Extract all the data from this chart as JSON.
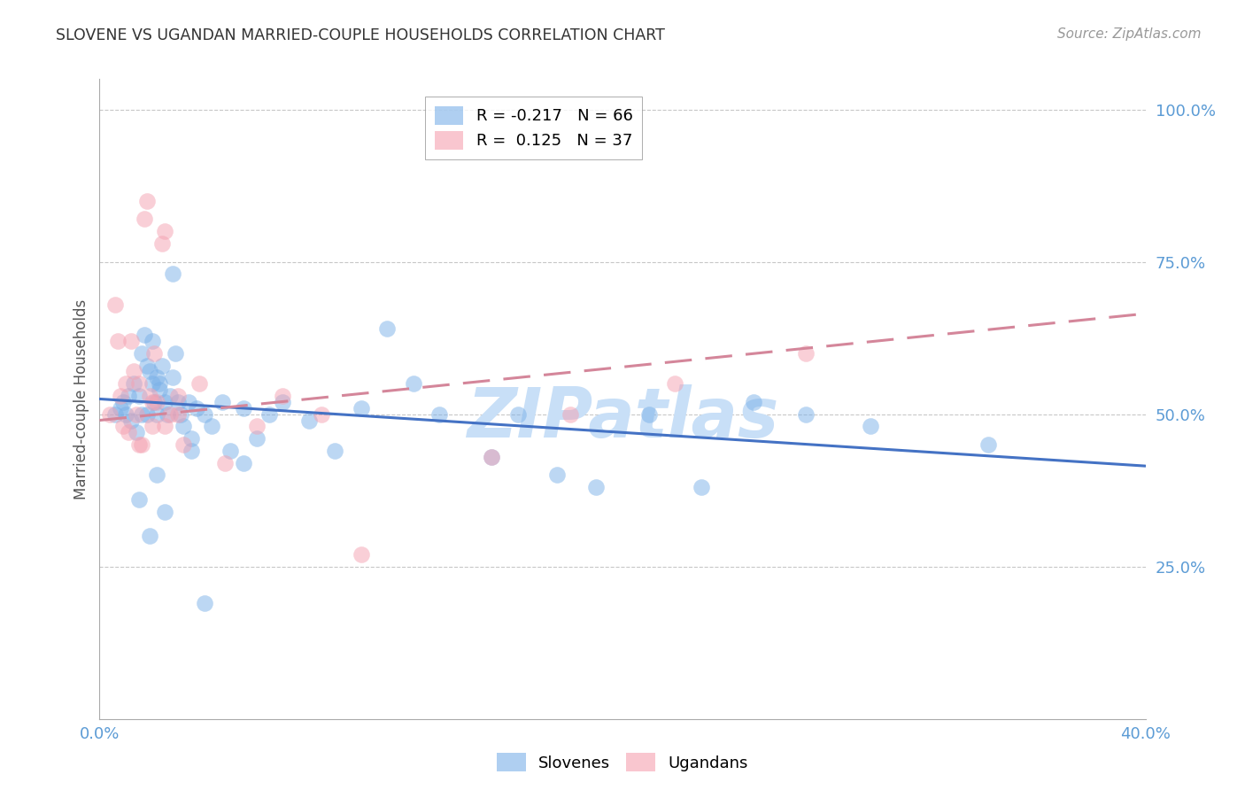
{
  "title": "SLOVENE VS UGANDAN MARRIED-COUPLE HOUSEHOLDS CORRELATION CHART",
  "source": "Source: ZipAtlas.com",
  "ylabel": "Married-couple Households",
  "xlim": [
    0.0,
    0.4
  ],
  "ylim": [
    0.0,
    1.05
  ],
  "slovene_color": "#7ab0e8",
  "ugandan_color": "#f5a0b0",
  "slovene_line_color": "#4472c4",
  "ugandan_line_color": "#d4869a",
  "background_color": "#ffffff",
  "grid_color": "#c8c8c8",
  "title_color": "#333333",
  "tick_color": "#5b9bd5",
  "watermark": "ZIPatlas",
  "watermark_color": "#c8dff7",
  "slovene_line_x0": 0.0,
  "slovene_line_y0": 0.525,
  "slovene_line_x1": 0.4,
  "slovene_line_y1": 0.415,
  "ugandan_line_x0": 0.0,
  "ugandan_line_y0": 0.49,
  "ugandan_line_x1": 0.4,
  "ugandan_line_y1": 0.665,
  "slovene_x": [
    0.006,
    0.008,
    0.009,
    0.01,
    0.011,
    0.012,
    0.013,
    0.014,
    0.015,
    0.016,
    0.016,
    0.017,
    0.018,
    0.018,
    0.019,
    0.02,
    0.02,
    0.021,
    0.022,
    0.022,
    0.023,
    0.023,
    0.024,
    0.025,
    0.026,
    0.027,
    0.028,
    0.029,
    0.03,
    0.031,
    0.032,
    0.034,
    0.035,
    0.037,
    0.04,
    0.043,
    0.047,
    0.05,
    0.055,
    0.06,
    0.065,
    0.07,
    0.08,
    0.09,
    0.1,
    0.11,
    0.12,
    0.13,
    0.15,
    0.16,
    0.175,
    0.19,
    0.21,
    0.23,
    0.25,
    0.27,
    0.295,
    0.34,
    0.015,
    0.019,
    0.022,
    0.025,
    0.028,
    0.035,
    0.04,
    0.055
  ],
  "slovene_y": [
    0.5,
    0.51,
    0.52,
    0.5,
    0.53,
    0.49,
    0.55,
    0.47,
    0.53,
    0.5,
    0.6,
    0.63,
    0.58,
    0.5,
    0.57,
    0.62,
    0.55,
    0.52,
    0.56,
    0.5,
    0.55,
    0.54,
    0.58,
    0.52,
    0.5,
    0.53,
    0.56,
    0.6,
    0.52,
    0.5,
    0.48,
    0.52,
    0.44,
    0.51,
    0.5,
    0.48,
    0.52,
    0.44,
    0.51,
    0.46,
    0.5,
    0.52,
    0.49,
    0.44,
    0.51,
    0.64,
    0.55,
    0.5,
    0.43,
    0.5,
    0.4,
    0.38,
    0.5,
    0.38,
    0.52,
    0.5,
    0.48,
    0.45,
    0.36,
    0.3,
    0.4,
    0.34,
    0.73,
    0.46,
    0.19,
    0.42
  ],
  "ugandan_x": [
    0.004,
    0.006,
    0.007,
    0.008,
    0.009,
    0.01,
    0.011,
    0.012,
    0.013,
    0.014,
    0.015,
    0.016,
    0.017,
    0.018,
    0.019,
    0.02,
    0.021,
    0.022,
    0.024,
    0.025,
    0.027,
    0.03,
    0.032,
    0.038,
    0.048,
    0.06,
    0.07,
    0.085,
    0.1,
    0.15,
    0.18,
    0.22,
    0.27,
    0.015,
    0.02,
    0.025,
    0.03
  ],
  "ugandan_y": [
    0.5,
    0.68,
    0.62,
    0.53,
    0.48,
    0.55,
    0.47,
    0.62,
    0.57,
    0.5,
    0.55,
    0.45,
    0.82,
    0.85,
    0.53,
    0.48,
    0.6,
    0.52,
    0.78,
    0.8,
    0.5,
    0.5,
    0.45,
    0.55,
    0.42,
    0.48,
    0.53,
    0.5,
    0.27,
    0.43,
    0.5,
    0.55,
    0.6,
    0.45,
    0.52,
    0.48,
    0.53
  ]
}
